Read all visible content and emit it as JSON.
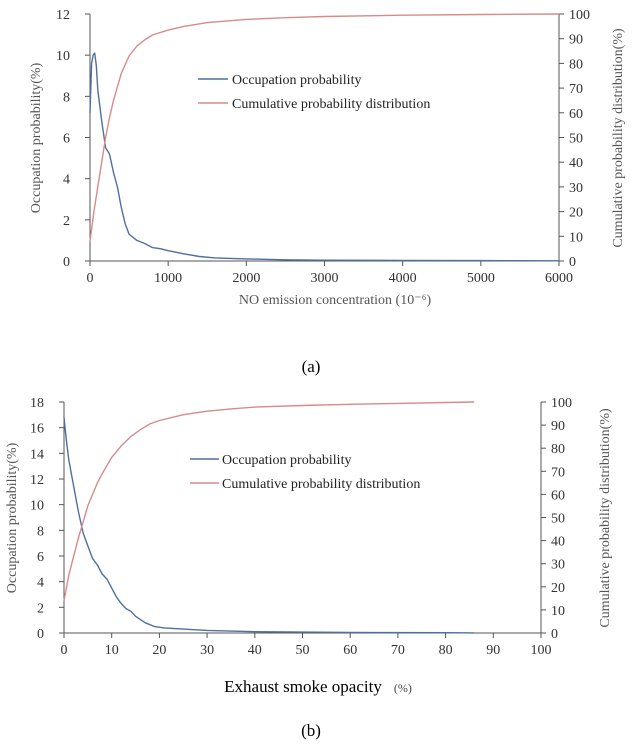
{
  "colors": {
    "occupation": "#4f6f9f",
    "cumulative": "#d98a8a",
    "axis": "#555555"
  },
  "chart_data": [
    {
      "id": "a",
      "type": "line",
      "caption": "(a)",
      "xlabel": "NO emission  concentration  (10⁻⁶)",
      "ylabel_left": "Occupation probability(%)",
      "ylabel_right": "Cumulative probability  distribution(%)",
      "xlim": [
        0,
        6000
      ],
      "ylim_left": [
        0,
        12
      ],
      "ylim_right": [
        0,
        100
      ],
      "x_ticks": [
        "0",
        "1000",
        "2000",
        "3000",
        "4000",
        "5000",
        "6000"
      ],
      "y_left_ticks": [
        "0",
        "2",
        "4",
        "6",
        "8",
        "10",
        "12"
      ],
      "y_right_ticks": [
        "0",
        "10",
        "20",
        "30",
        "40",
        "50",
        "60",
        "70",
        "80",
        "90",
        "100"
      ],
      "legend": [
        "Occupation probability",
        "Cumulative probability distribution"
      ],
      "series": [
        {
          "name": "Occupation probability",
          "axis": "left",
          "x": [
            0,
            20,
            40,
            60,
            80,
            100,
            150,
            200,
            250,
            300,
            350,
            400,
            450,
            500,
            600,
            700,
            800,
            900,
            1000,
            1200,
            1400,
            1600,
            2000,
            2500,
            3000,
            4000,
            5000,
            6000
          ],
          "y": [
            7.2,
            9.6,
            10.0,
            10.1,
            9.5,
            8.3,
            6.8,
            5.5,
            5.2,
            4.3,
            3.6,
            2.6,
            1.8,
            1.3,
            1.0,
            0.85,
            0.65,
            0.6,
            0.5,
            0.35,
            0.22,
            0.15,
            0.1,
            0.06,
            0.04,
            0.03,
            0.02,
            0.01
          ]
        },
        {
          "name": "Cumulative probability distribution",
          "axis": "right",
          "x": [
            0,
            50,
            100,
            150,
            200,
            250,
            300,
            400,
            500,
            600,
            700,
            800,
            1000,
            1200,
            1500,
            2000,
            2500,
            3000,
            4000,
            5000,
            6000
          ],
          "y": [
            8,
            20,
            30,
            40,
            50,
            58,
            65,
            76,
            83,
            87,
            89.5,
            91.5,
            93.5,
            95,
            96.5,
            97.8,
            98.5,
            99,
            99.5,
            99.8,
            100
          ]
        }
      ]
    },
    {
      "id": "b",
      "type": "line",
      "caption": "(b)",
      "xlabel": "Exhaust smoke opacity",
      "xlabel_unit": "(%)",
      "ylabel_left": "Occupation probability(%)",
      "ylabel_right": "Cumulative probability  distribution(%)",
      "xlim": [
        0,
        100
      ],
      "ylim_left": [
        0,
        18
      ],
      "ylim_right": [
        0,
        100
      ],
      "x_ticks": [
        "0",
        "10",
        "20",
        "30",
        "40",
        "50",
        "60",
        "70",
        "80",
        "90",
        "100"
      ],
      "y_left_ticks": [
        "0",
        "2",
        "4",
        "6",
        "8",
        "10",
        "12",
        "14",
        "16",
        "18"
      ],
      "y_right_ticks": [
        "0",
        "10",
        "20",
        "30",
        "40",
        "50",
        "60",
        "70",
        "80",
        "90",
        "100"
      ],
      "legend": [
        "Occupation probability",
        "Cumulative probability distribution"
      ],
      "series": [
        {
          "name": "Occupation probability",
          "axis": "left",
          "x": [
            0,
            0.5,
            1,
            2,
            3,
            4,
            5,
            6,
            7,
            8,
            9,
            10,
            11,
            12,
            13,
            14,
            15,
            17,
            19,
            21,
            25,
            30,
            40,
            50,
            60,
            70,
            80,
            86
          ],
          "y": [
            16.8,
            15.0,
            13.5,
            11.5,
            9.5,
            7.8,
            6.8,
            5.8,
            5.3,
            4.6,
            4.2,
            3.5,
            2.8,
            2.3,
            1.9,
            1.7,
            1.3,
            0.8,
            0.5,
            0.4,
            0.3,
            0.2,
            0.1,
            0.07,
            0.05,
            0.03,
            0.02,
            0.01
          ]
        },
        {
          "name": "Cumulative probability distribution",
          "axis": "right",
          "x": [
            0,
            1,
            2,
            3,
            4,
            5,
            6,
            7,
            8,
            10,
            12,
            14,
            16,
            18,
            20,
            25,
            30,
            35,
            40,
            50,
            60,
            70,
            80,
            86
          ],
          "y": [
            14,
            25,
            33,
            41,
            48,
            55,
            60,
            65,
            69,
            76,
            81,
            85,
            88,
            90.5,
            92,
            94.5,
            96,
            97,
            97.8,
            98.5,
            99,
            99.4,
            99.8,
            100
          ]
        }
      ]
    }
  ]
}
